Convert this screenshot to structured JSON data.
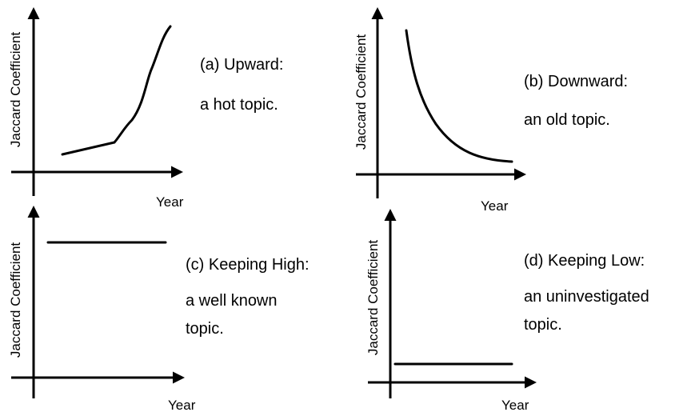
{
  "panels": [
    {
      "y_label": "Jaccard Coefficient",
      "x_label": "Year",
      "caption": [
        "(a) Upward:",
        "a hot topic."
      ]
    },
    {
      "y_label": "Jaccard Coefficient",
      "x_label": "Year",
      "caption": [
        "(b) Downward:",
        "an old topic."
      ]
    },
    {
      "y_label": "Jaccard Coefficient",
      "x_label": "Year",
      "caption": [
        "(c) Keeping High:",
        "a well known",
        "topic."
      ]
    },
    {
      "y_label": "Jaccard Coefficient",
      "x_label": "Year",
      "caption": [
        "(d) Keeping Low:",
        "an uninvestigated",
        "topic."
      ]
    }
  ]
}
